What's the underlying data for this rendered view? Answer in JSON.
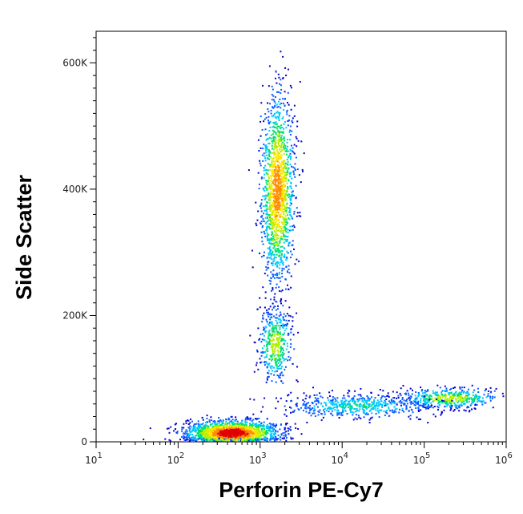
{
  "chart_data": {
    "type": "scatter",
    "title": "",
    "xlabel": "Perforin PE-Cy7",
    "ylabel": "Side Scatter",
    "x_scale": "log",
    "xlim": [
      10,
      1000000
    ],
    "ylim": [
      0,
      650000
    ],
    "x_ticks": [
      {
        "value": 10,
        "base": "10",
        "exp": "1"
      },
      {
        "value": 100,
        "base": "10",
        "exp": "2"
      },
      {
        "value": 1000,
        "base": "10",
        "exp": "3"
      },
      {
        "value": 10000,
        "base": "10",
        "exp": "4"
      },
      {
        "value": 100000,
        "base": "10",
        "exp": "5"
      },
      {
        "value": 1000000,
        "base": "10",
        "exp": "6"
      }
    ],
    "y_ticks": [
      {
        "value": 0,
        "label": "0"
      },
      {
        "value": 200000,
        "label": "200K"
      },
      {
        "value": 400000,
        "label": "400K"
      },
      {
        "value": 600000,
        "label": "600K"
      }
    ],
    "grid": false,
    "legend": "none",
    "color_scale": [
      "#0000c8",
      "#0a5aff",
      "#00c8ff",
      "#00e070",
      "#b4f000",
      "#ffe600",
      "#ff8c00",
      "#e00000"
    ],
    "populations": [
      {
        "x_center": 1600,
        "y_center": 400000,
        "x_spread_log": 0.1,
        "y_spread": 75000,
        "count": 1500,
        "peak_density": 0.8
      },
      {
        "x_center": 1500,
        "y_center": 155000,
        "x_spread_log": 0.1,
        "y_spread": 30000,
        "count": 420,
        "peak_density": 0.55
      },
      {
        "x_center": 450,
        "y_center": 15000,
        "x_spread_log": 0.28,
        "y_spread": 10000,
        "count": 1800,
        "peak_density": 1.0
      },
      {
        "x_center": 200000,
        "y_center": 70000,
        "x_spread_log": 0.3,
        "y_spread": 8000,
        "count": 450,
        "peak_density": 0.55
      },
      {
        "x_center": 15000,
        "y_center": 58000,
        "x_spread_log": 0.45,
        "y_spread": 10000,
        "count": 550,
        "peak_density": 0.35
      }
    ]
  }
}
